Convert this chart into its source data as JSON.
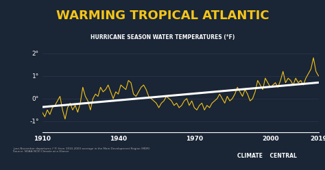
{
  "title": "WARMING TROPICAL ATLANTIC",
  "subtitle": "HURRICANE SEASON WATER TEMPERATURES (°F)",
  "footer_left": "June-November departures (°F) from 1910-2000 average in the Main Development Region (MDR)\nSource: NOAA NCEI Climate at a Glance",
  "footer_right": "CLIMATE    CENTRAL",
  "bg_color": "#1a2535",
  "title_color": "#f5c518",
  "subtitle_color": "#ffffff",
  "axis_color": "#ffffff",
  "line_color": "#f5c518",
  "trend_color": "#ffffff",
  "grid_color": "#2a3a50",
  "x_start": 1910,
  "x_end": 2019,
  "y_min": -1.5,
  "y_max": 2.25,
  "yticks": [
    -1,
    0,
    1,
    2
  ],
  "xticks": [
    1910,
    1940,
    1970,
    2000,
    2019
  ],
  "years": [
    1910,
    1911,
    1912,
    1913,
    1914,
    1915,
    1916,
    1917,
    1918,
    1919,
    1920,
    1921,
    1922,
    1923,
    1924,
    1925,
    1926,
    1927,
    1928,
    1929,
    1930,
    1931,
    1932,
    1933,
    1934,
    1935,
    1936,
    1937,
    1938,
    1939,
    1940,
    1941,
    1942,
    1943,
    1944,
    1945,
    1946,
    1947,
    1948,
    1949,
    1950,
    1951,
    1952,
    1953,
    1954,
    1955,
    1956,
    1957,
    1958,
    1959,
    1960,
    1961,
    1962,
    1963,
    1964,
    1965,
    1966,
    1967,
    1968,
    1969,
    1970,
    1971,
    1972,
    1973,
    1974,
    1975,
    1976,
    1977,
    1978,
    1979,
    1980,
    1981,
    1982,
    1983,
    1984,
    1985,
    1986,
    1987,
    1988,
    1989,
    1990,
    1991,
    1992,
    1993,
    1994,
    1995,
    1996,
    1997,
    1998,
    1999,
    2000,
    2001,
    2002,
    2003,
    2004,
    2005,
    2006,
    2007,
    2008,
    2009,
    2010,
    2011,
    2012,
    2013,
    2014,
    2015,
    2016,
    2017,
    2018,
    2019
  ],
  "values": [
    -0.6,
    -0.8,
    -0.5,
    -0.7,
    -0.4,
    -0.3,
    -0.1,
    0.1,
    -0.5,
    -0.9,
    -0.4,
    -0.2,
    -0.5,
    -0.3,
    -0.6,
    -0.2,
    0.5,
    0.1,
    -0.1,
    -0.5,
    0.0,
    0.2,
    0.1,
    0.5,
    0.3,
    0.4,
    0.6,
    0.3,
    0.0,
    0.3,
    0.2,
    0.6,
    0.5,
    0.4,
    0.8,
    0.7,
    0.2,
    0.1,
    0.3,
    0.5,
    0.6,
    0.4,
    0.1,
    0.0,
    -0.1,
    -0.2,
    -0.4,
    -0.2,
    -0.1,
    0.1,
    0.0,
    -0.1,
    -0.3,
    -0.2,
    -0.4,
    -0.3,
    -0.1,
    0.0,
    -0.3,
    -0.1,
    -0.4,
    -0.5,
    -0.3,
    -0.2,
    -0.5,
    -0.3,
    -0.4,
    -0.2,
    -0.1,
    0.0,
    0.2,
    0.0,
    -0.2,
    0.1,
    -0.1,
    0.0,
    0.2,
    0.5,
    0.3,
    0.1,
    0.4,
    0.2,
    -0.1,
    0.0,
    0.3,
    0.8,
    0.6,
    0.4,
    0.9,
    0.7,
    0.5,
    0.6,
    0.7,
    0.5,
    0.8,
    1.2,
    0.7,
    0.9,
    0.8,
    0.6,
    0.9,
    0.7,
    0.8,
    0.6,
    0.9,
    1.1,
    1.3,
    1.8,
    1.2,
    1.0
  ]
}
